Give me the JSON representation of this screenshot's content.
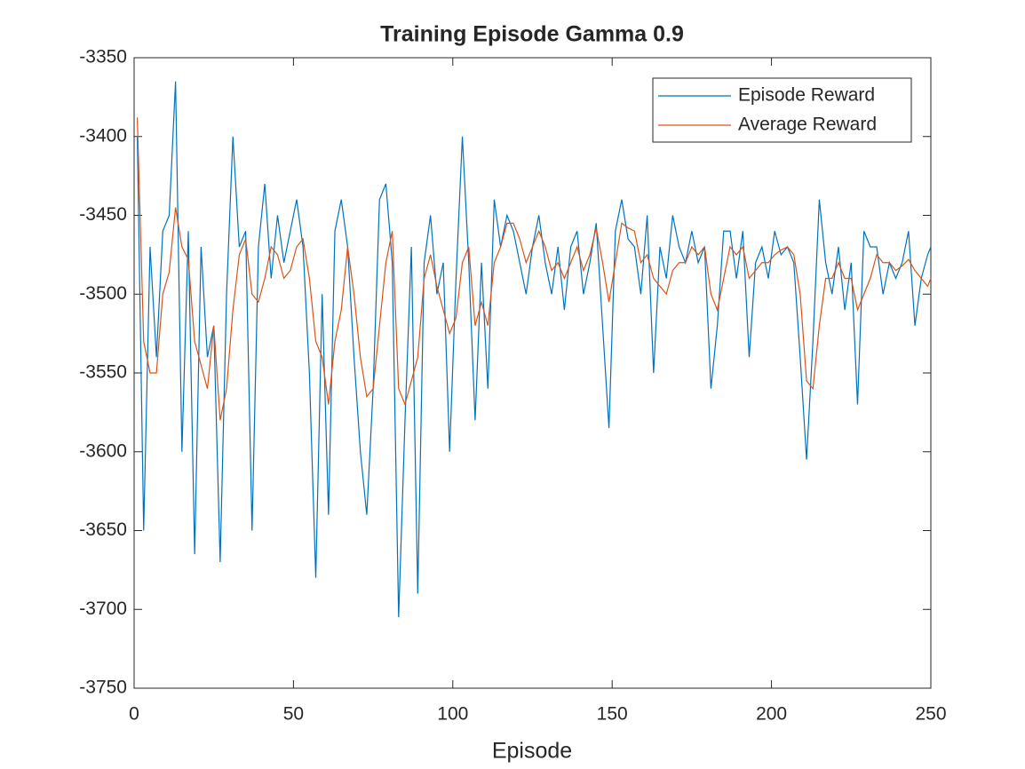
{
  "chart_data": {
    "type": "line",
    "title": "Training Episode Gamma 0.9",
    "x_label": "Episode",
    "x": [
      1,
      3,
      5,
      7,
      9,
      11,
      13,
      15,
      17,
      19,
      21,
      23,
      25,
      27,
      29,
      31,
      33,
      35,
      37,
      39,
      41,
      43,
      45,
      47,
      49,
      51,
      53,
      55,
      57,
      59,
      61,
      63,
      65,
      67,
      69,
      71,
      73,
      75,
      77,
      79,
      81,
      83,
      85,
      87,
      89,
      91,
      93,
      95,
      97,
      99,
      101,
      103,
      105,
      107,
      109,
      111,
      113,
      115,
      117,
      119,
      121,
      123,
      125,
      127,
      129,
      131,
      133,
      135,
      137,
      139,
      141,
      143,
      145,
      147,
      149,
      151,
      153,
      155,
      157,
      159,
      161,
      163,
      165,
      167,
      169,
      171,
      173,
      175,
      177,
      179,
      181,
      183,
      185,
      187,
      189,
      191,
      193,
      195,
      197,
      199,
      201,
      203,
      205,
      207,
      209,
      211,
      213,
      215,
      217,
      219,
      221,
      223,
      225,
      227,
      229,
      231,
      233,
      235,
      237,
      239,
      241,
      243,
      245,
      247,
      249,
      250
    ],
    "series": [
      {
        "name": "Episode Reward",
        "color": "#0072bd",
        "values": [
          -3400,
          -3650,
          -3470,
          -3540,
          -3460,
          -3450,
          -3365,
          -3600,
          -3460,
          -3665,
          -3470,
          -3540,
          -3520,
          -3670,
          -3500,
          -3400,
          -3470,
          -3460,
          -3650,
          -3470,
          -3430,
          -3490,
          -3450,
          -3480,
          -3460,
          -3440,
          -3470,
          -3550,
          -3680,
          -3500,
          -3640,
          -3460,
          -3440,
          -3470,
          -3540,
          -3600,
          -3640,
          -3560,
          -3440,
          -3430,
          -3480,
          -3705,
          -3580,
          -3470,
          -3690,
          -3480,
          -3450,
          -3500,
          -3480,
          -3600,
          -3490,
          -3400,
          -3480,
          -3580,
          -3480,
          -3560,
          -3440,
          -3470,
          -3450,
          -3460,
          -3480,
          -3500,
          -3470,
          -3450,
          -3480,
          -3500,
          -3470,
          -3510,
          -3470,
          -3460,
          -3500,
          -3480,
          -3455,
          -3520,
          -3585,
          -3460,
          -3440,
          -3465,
          -3470,
          -3500,
          -3450,
          -3550,
          -3470,
          -3490,
          -3450,
          -3470,
          -3480,
          -3460,
          -3480,
          -3470,
          -3560,
          -3520,
          -3460,
          -3460,
          -3490,
          -3460,
          -3540,
          -3480,
          -3470,
          -3490,
          -3460,
          -3475,
          -3470,
          -3480,
          -3540,
          -3605,
          -3530,
          -3440,
          -3480,
          -3500,
          -3470,
          -3510,
          -3480,
          -3570,
          -3460,
          -3470,
          -3470,
          -3500,
          -3480,
          -3490,
          -3480,
          -3460,
          -3520,
          -3490,
          -3475,
          -3470
        ]
      },
      {
        "name": "Average Reward",
        "color": "#d95319",
        "values": [
          -3388,
          -3530,
          -3550,
          -3550,
          -3500,
          -3486,
          -3445,
          -3470,
          -3478,
          -3530,
          -3545,
          -3560,
          -3520,
          -3580,
          -3560,
          -3510,
          -3475,
          -3465,
          -3500,
          -3505,
          -3490,
          -3470,
          -3475,
          -3490,
          -3485,
          -3470,
          -3465,
          -3490,
          -3530,
          -3540,
          -3570,
          -3530,
          -3510,
          -3470,
          -3500,
          -3540,
          -3565,
          -3560,
          -3520,
          -3480,
          -3460,
          -3560,
          -3570,
          -3555,
          -3540,
          -3490,
          -3475,
          -3495,
          -3510,
          -3525,
          -3515,
          -3480,
          -3470,
          -3520,
          -3505,
          -3520,
          -3480,
          -3470,
          -3455,
          -3455,
          -3465,
          -3480,
          -3470,
          -3460,
          -3470,
          -3485,
          -3480,
          -3490,
          -3480,
          -3470,
          -3485,
          -3475,
          -3458,
          -3480,
          -3505,
          -3480,
          -3455,
          -3458,
          -3460,
          -3480,
          -3475,
          -3490,
          -3495,
          -3500,
          -3485,
          -3480,
          -3480,
          -3470,
          -3475,
          -3470,
          -3500,
          -3510,
          -3490,
          -3470,
          -3475,
          -3470,
          -3490,
          -3485,
          -3480,
          -3480,
          -3475,
          -3472,
          -3470,
          -3475,
          -3500,
          -3555,
          -3560,
          -3520,
          -3490,
          -3490,
          -3480,
          -3490,
          -3490,
          -3510,
          -3500,
          -3490,
          -3475,
          -3480,
          -3480,
          -3485,
          -3482,
          -3478,
          -3485,
          -3490,
          -3495,
          -3490
        ]
      }
    ],
    "xlim": [
      0,
      250
    ],
    "xticks": [
      0,
      50,
      100,
      150,
      200,
      250
    ],
    "ylim": [
      -3750,
      -3350
    ],
    "yticks": [
      -3750,
      -3700,
      -3650,
      -3600,
      -3550,
      -3500,
      -3450,
      -3400,
      -3350
    ],
    "legend": "upper right"
  }
}
